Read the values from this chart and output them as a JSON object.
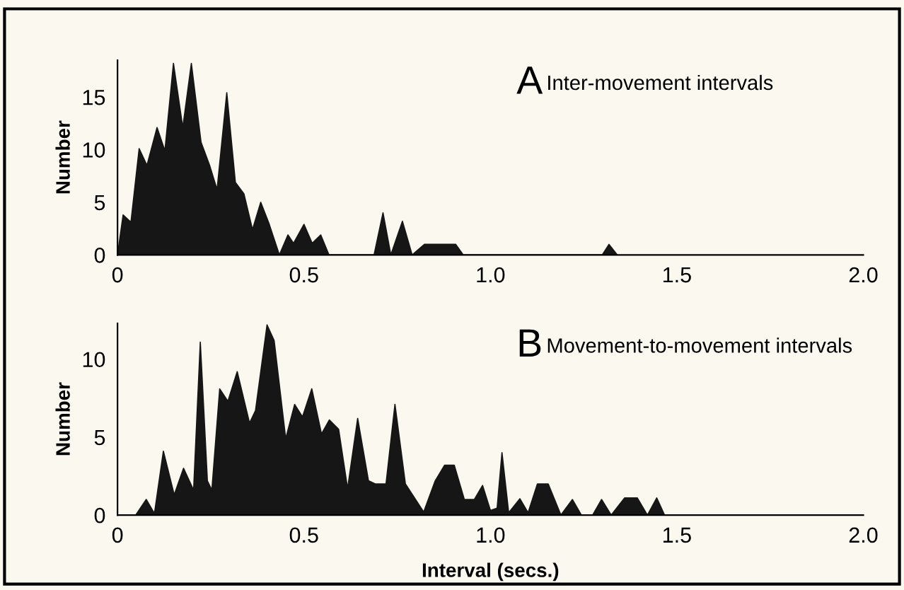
{
  "chart_data": [
    {
      "type": "area",
      "title": "A",
      "subtitle": "Inter-movement intervals",
      "ylabel": "Number",
      "x": [
        0,
        0.015,
        0.036,
        0.058,
        0.079,
        0.106,
        0.127,
        0.15,
        0.175,
        0.198,
        0.224,
        0.247,
        0.267,
        0.293,
        0.316,
        0.339,
        0.362,
        0.384,
        0.407,
        0.434,
        0.457,
        0.472,
        0.5,
        0.522,
        0.545,
        0.567,
        0.688,
        0.712,
        0.733,
        0.764,
        0.79,
        0.823,
        0.907,
        0.927,
        1.3,
        1.318,
        1.34
      ],
      "series": [
        {
          "color": "#161616",
          "values": [
            0,
            3.8,
            3.1,
            10.1,
            8.5,
            12.1,
            9.9,
            18.2,
            12.1,
            18.2,
            10.7,
            8.5,
            6.2,
            15.4,
            6.9,
            5.8,
            2.4,
            5,
            2.9,
            0,
            1.9,
            1.1,
            2.9,
            1.1,
            1.9,
            0,
            0,
            4,
            0,
            3.2,
            0,
            1,
            1,
            0,
            0,
            1,
            0
          ]
        }
      ],
      "xlim": [
        0,
        2
      ],
      "xticks": [
        0,
        0.5,
        {
          "value": 1,
          "label": "1.0"
        },
        {
          "value": 1.5,
          "label": "1.5"
        },
        {
          "value": 2,
          "label": "2.0"
        }
      ],
      "ylim": [
        0,
        18.5
      ],
      "yticks": [
        0,
        5,
        10,
        15
      ],
      "grid": false,
      "legend": false
    },
    {
      "type": "area",
      "title": "B",
      "subtitle": "Movement-to-movement intervals",
      "ylabel": "Number",
      "xlabel": "Interval (secs.)",
      "x": [
        0.049,
        0.077,
        0.099,
        0.123,
        0.152,
        0.177,
        0.204,
        0.222,
        0.241,
        0.253,
        0.274,
        0.296,
        0.321,
        0.354,
        0.37,
        0.401,
        0.42,
        0.451,
        0.475,
        0.496,
        0.521,
        0.547,
        0.568,
        0.593,
        0.617,
        0.644,
        0.673,
        0.691,
        0.72,
        0.744,
        0.772,
        0.821,
        0.852,
        0.877,
        0.903,
        0.93,
        0.957,
        0.979,
        1.0,
        1.018,
        1.031,
        1.049,
        1.079,
        1.101,
        1.126,
        1.155,
        1.189,
        1.22,
        1.244,
        1.274,
        1.298,
        1.324,
        1.36,
        1.394,
        1.421,
        1.446,
        1.467
      ],
      "series": [
        {
          "color": "#161616",
          "values": [
            0,
            1,
            0.1,
            4.1,
            1.3,
            3,
            1.6,
            11.1,
            2.2,
            1.6,
            8.1,
            7.3,
            9.2,
            5.9,
            6.7,
            12.2,
            11.2,
            4.9,
            7.1,
            6.3,
            8.1,
            5.2,
            6.1,
            5.5,
            1.7,
            6.2,
            2.2,
            2,
            2,
            7.1,
            2,
            0.2,
            2.2,
            3.2,
            3.2,
            1,
            1,
            1.9,
            0.3,
            0.45,
            4,
            0.15,
            1.05,
            0.15,
            2,
            2,
            0,
            1,
            0,
            0,
            1,
            0,
            1.1,
            1.1,
            0,
            1.1,
            0
          ]
        }
      ],
      "xlim": [
        0,
        2
      ],
      "xticks": [
        0,
        0.5,
        {
          "value": 1,
          "label": "1.0"
        },
        {
          "value": 1.5,
          "label": "1.5"
        },
        {
          "value": 2,
          "label": "2.0"
        }
      ],
      "ylim": [
        0,
        12.3
      ],
      "yticks": [
        0,
        5,
        10
      ],
      "grid": false,
      "legend": false
    }
  ]
}
